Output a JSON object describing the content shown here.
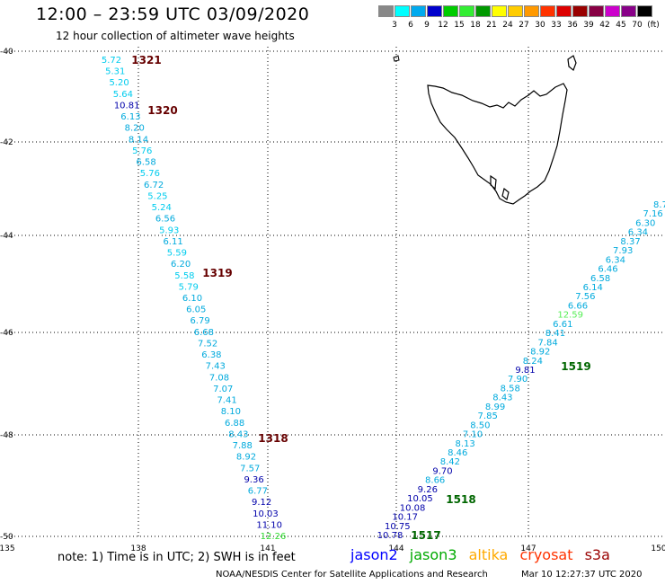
{
  "title": "12:00 – 23:59 UTC 03/09/2020",
  "subtitle": "12 hour collection of altimeter wave heights",
  "legend": {
    "labels": [
      "3",
      "6",
      "9",
      "12",
      "15",
      "18",
      "21",
      "24",
      "27",
      "30",
      "33",
      "36",
      "39",
      "42",
      "45",
      "70",
      "(ft)"
    ],
    "colors": [
      "#888888",
      "#00ffff",
      "#00aaee",
      "#0000cc",
      "#00cc00",
      "#33ee33",
      "#009900",
      "#ffff00",
      "#ffcc00",
      "#ff9900",
      "#ff3300",
      "#dd0000",
      "#990000",
      "#880044",
      "#cc00cc",
      "#880088",
      "#000000"
    ]
  },
  "axes": {
    "x_ticks": [
      "135",
      "138",
      "141",
      "144",
      "147",
      "150"
    ],
    "y_ticks": [
      "-40",
      "-42",
      "-44",
      "-46",
      "-48",
      "-50"
    ]
  },
  "track_labels": [
    {
      "text": "1321",
      "color": "#660000"
    },
    {
      "text": "1320",
      "color": "#660000"
    },
    {
      "text": "1319",
      "color": "#660000"
    },
    {
      "text": "1318",
      "color": "#660000"
    },
    {
      "text": "1519",
      "color": "#006600"
    },
    {
      "text": "1518",
      "color": "#006600"
    },
    {
      "text": "1517",
      "color": "#006600"
    }
  ],
  "track1_values": [
    {
      "v": "5.72",
      "c": "#00ccee"
    },
    {
      "v": "5.31",
      "c": "#00ccee"
    },
    {
      "v": "5.20",
      "c": "#00ccee"
    },
    {
      "v": "5.64",
      "c": "#00ccee"
    },
    {
      "v": "10.81",
      "c": "#0000aa"
    },
    {
      "v": "6.13",
      "c": "#00aadd"
    },
    {
      "v": "8.20",
      "c": "#00aadd"
    },
    {
      "v": "8.14",
      "c": "#00aadd"
    },
    {
      "v": "5.76",
      "c": "#00ccee"
    },
    {
      "v": "6.58",
      "c": "#00aadd"
    },
    {
      "v": "5.76",
      "c": "#00ccee"
    },
    {
      "v": "6.72",
      "c": "#00aadd"
    },
    {
      "v": "5.25",
      "c": "#00ccee"
    },
    {
      "v": "5.24",
      "c": "#00ccee"
    },
    {
      "v": "6.56",
      "c": "#00aadd"
    },
    {
      "v": "5.93",
      "c": "#00ccee"
    },
    {
      "v": "6.11",
      "c": "#00aadd"
    },
    {
      "v": "5.59",
      "c": "#00ccee"
    },
    {
      "v": "6.20",
      "c": "#00aadd"
    },
    {
      "v": "5.58",
      "c": "#00ccee"
    },
    {
      "v": "5.79",
      "c": "#00ccee"
    },
    {
      "v": "6.10",
      "c": "#00aadd"
    },
    {
      "v": "6.05",
      "c": "#00aadd"
    },
    {
      "v": "6.79",
      "c": "#00aadd"
    },
    {
      "v": "6.68",
      "c": "#00aadd"
    },
    {
      "v": "7.52",
      "c": "#00aadd"
    },
    {
      "v": "6.38",
      "c": "#00aadd"
    },
    {
      "v": "7.43",
      "c": "#00aadd"
    },
    {
      "v": "7.08",
      "c": "#00aadd"
    },
    {
      "v": "7.07",
      "c": "#00aadd"
    },
    {
      "v": "7.41",
      "c": "#00aadd"
    },
    {
      "v": "8.10",
      "c": "#00aadd"
    },
    {
      "v": "6.88",
      "c": "#00aadd"
    },
    {
      "v": "8.43",
      "c": "#00aadd"
    },
    {
      "v": "7.88",
      "c": "#00aadd"
    },
    {
      "v": "8.92",
      "c": "#00aadd"
    },
    {
      "v": "7.57",
      "c": "#00aadd"
    },
    {
      "v": "9.36",
      "c": "#0000aa"
    },
    {
      "v": "6.77",
      "c": "#00aadd"
    },
    {
      "v": "9.12",
      "c": "#0000aa"
    },
    {
      "v": "10.03",
      "c": "#0000aa"
    },
    {
      "v": "11.10",
      "c": "#0000aa"
    },
    {
      "v": "12.26",
      "c": "#33dd33"
    }
  ],
  "track2_values": [
    {
      "v": "10.78",
      "c": "#0000aa"
    },
    {
      "v": "10.75",
      "c": "#0000aa"
    },
    {
      "v": "10.17",
      "c": "#0000aa"
    },
    {
      "v": "10.08",
      "c": "#0000aa"
    },
    {
      "v": "10.05",
      "c": "#0000aa"
    },
    {
      "v": "9.26",
      "c": "#0000aa"
    },
    {
      "v": "8.66",
      "c": "#00aadd"
    },
    {
      "v": "9.70",
      "c": "#0000aa"
    },
    {
      "v": "8.42",
      "c": "#00aadd"
    },
    {
      "v": "8.46",
      "c": "#00aadd"
    },
    {
      "v": "8.13",
      "c": "#00aadd"
    },
    {
      "v": "7.10",
      "c": "#00aadd"
    },
    {
      "v": "8.50",
      "c": "#00aadd"
    },
    {
      "v": "7.85",
      "c": "#00aadd"
    },
    {
      "v": "8.99",
      "c": "#00aadd"
    },
    {
      "v": "8.43",
      "c": "#00aadd"
    },
    {
      "v": "8.58",
      "c": "#00aadd"
    },
    {
      "v": "7.90",
      "c": "#00aadd"
    },
    {
      "v": "9.81",
      "c": "#0000aa"
    },
    {
      "v": "8.24",
      "c": "#00aadd"
    },
    {
      "v": "8.92",
      "c": "#00aadd"
    },
    {
      "v": "7.84",
      "c": "#00aadd"
    },
    {
      "v": "8.41",
      "c": "#00aadd"
    },
    {
      "v": "6.61",
      "c": "#00aadd"
    },
    {
      "v": "12.59",
      "c": "#55ee55"
    },
    {
      "v": "6.66",
      "c": "#00aadd"
    },
    {
      "v": "7.56",
      "c": "#00aadd"
    },
    {
      "v": "6.14",
      "c": "#00aadd"
    },
    {
      "v": "6.58",
      "c": "#00aadd"
    },
    {
      "v": "6.46",
      "c": "#00aadd"
    },
    {
      "v": "6.34",
      "c": "#00aadd"
    },
    {
      "v": "7.93",
      "c": "#00aadd"
    },
    {
      "v": "8.37",
      "c": "#00aadd"
    },
    {
      "v": "6.34",
      "c": "#00aadd"
    },
    {
      "v": "6.30",
      "c": "#00aadd"
    },
    {
      "v": "7.16",
      "c": "#00aadd"
    },
    {
      "v": "8.7",
      "c": "#00aadd"
    }
  ],
  "note": "note:  1) Time is in UTC; 2) SWH is in feet",
  "satellites": [
    {
      "name": "jason2",
      "color": "#0000ff"
    },
    {
      "name": "jason3",
      "color": "#00aa00"
    },
    {
      "name": "altika",
      "color": "#ffaa00"
    },
    {
      "name": "cryosat",
      "color": "#ff3300"
    },
    {
      "name": "s3a",
      "color": "#990000"
    }
  ],
  "credit": "NOAA/NESDIS Center for Satellite Applications and Research",
  "timestamp": "Mar 10 12:27:37 UTC 2020"
}
